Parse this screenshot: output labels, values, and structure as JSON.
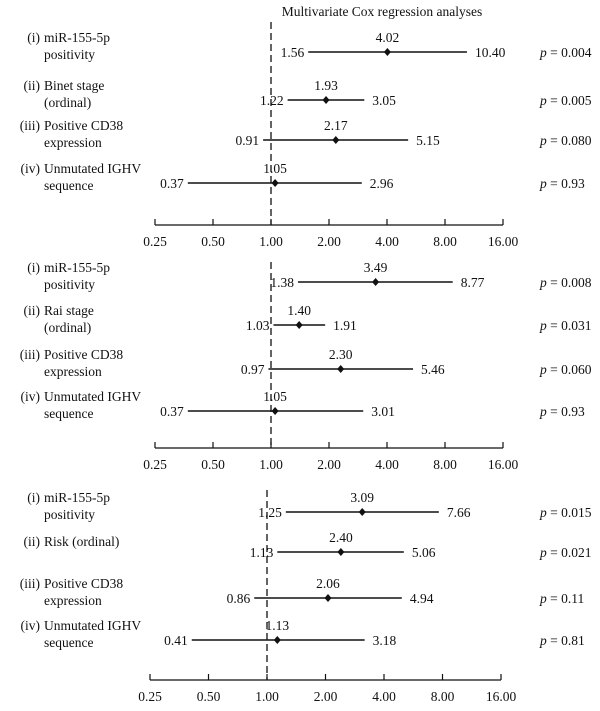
{
  "title": "Multivariate Cox regression analyses",
  "chart_data": [
    {
      "type": "forest",
      "scale": "log2",
      "reference_line": 1.0,
      "ticks": [
        "0.25",
        "0.50",
        "1.00",
        "2.00",
        "4.00",
        "8.00",
        "16.00"
      ],
      "tick_values": [
        0.25,
        0.5,
        1,
        2,
        4,
        8,
        16
      ],
      "rows": [
        {
          "num": "(i)",
          "label": [
            "miR-155-5p",
            "positivity"
          ],
          "hr": 4.02,
          "lo": 1.56,
          "hi": 10.4,
          "hr_label": "4.02",
          "lo_label": "1.56",
          "hi_label": "10.40",
          "p": "p = 0.004"
        },
        {
          "num": "(ii)",
          "label": [
            "Binet stage",
            "(ordinal)"
          ],
          "hr": 1.93,
          "lo": 1.22,
          "hi": 3.05,
          "hr_label": "1.93",
          "lo_label": "1.22",
          "hi_label": "3.05",
          "p": "p = 0.005"
        },
        {
          "num": "(iii)",
          "label": [
            "Positive CD38",
            "expression"
          ],
          "hr": 2.17,
          "lo": 0.91,
          "hi": 5.15,
          "hr_label": "2.17",
          "lo_label": "0.91",
          "hi_label": "5.15",
          "p": "p = 0.080"
        },
        {
          "num": "(iv)",
          "label": [
            "Unmutated IGHV",
            "sequence"
          ],
          "hr": 1.05,
          "lo": 0.37,
          "hi": 2.96,
          "hr_label": "1.05",
          "lo_label": "0.37",
          "hi_label": "2.96",
          "p": "p = 0.93"
        }
      ]
    },
    {
      "type": "forest",
      "scale": "log2",
      "reference_line": 1.0,
      "ticks": [
        "0.25",
        "0.50",
        "1.00",
        "2.00",
        "4.00",
        "8.00",
        "16.00"
      ],
      "tick_values": [
        0.25,
        0.5,
        1,
        2,
        4,
        8,
        16
      ],
      "rows": [
        {
          "num": "(i)",
          "label": [
            "miR-155-5p",
            "positivity"
          ],
          "hr": 3.49,
          "lo": 1.38,
          "hi": 8.77,
          "hr_label": "3.49",
          "lo_label": "1.38",
          "hi_label": "8.77",
          "p": "p = 0.008"
        },
        {
          "num": "(ii)",
          "label": [
            "Rai stage",
            "(ordinal)"
          ],
          "hr": 1.4,
          "lo": 1.03,
          "hi": 1.91,
          "hr_label": "1.40",
          "lo_label": "1.03",
          "hi_label": "1.91",
          "p": "p = 0.031"
        },
        {
          "num": "(iii)",
          "label": [
            "Positive CD38",
            "expression"
          ],
          "hr": 2.3,
          "lo": 0.97,
          "hi": 5.46,
          "hr_label": "2.30",
          "lo_label": "0.97",
          "hi_label": "5.46",
          "p": "p = 0.060"
        },
        {
          "num": "(iv)",
          "label": [
            "Unmutated IGHV",
            "sequence"
          ],
          "hr": 1.05,
          "lo": 0.37,
          "hi": 3.01,
          "hr_label": "1.05",
          "lo_label": "0.37",
          "hi_label": "3.01",
          "p": "p = 0.93"
        }
      ]
    },
    {
      "type": "forest",
      "scale": "log2",
      "reference_line": 1.0,
      "ticks": [
        "0.25",
        "0.50",
        "1.00",
        "2.00",
        "4.00",
        "8.00",
        "16.00"
      ],
      "tick_values": [
        0.25,
        0.5,
        1,
        2,
        4,
        8,
        16
      ],
      "rows": [
        {
          "num": "(i)",
          "label": [
            "miR-155-5p",
            "positivity"
          ],
          "hr": 3.09,
          "lo": 1.25,
          "hi": 7.66,
          "hr_label": "3.09",
          "lo_label": "1.25",
          "hi_label": "7.66",
          "p": "p = 0.015"
        },
        {
          "num": "(ii)",
          "label": [
            "Risk (ordinal)"
          ],
          "hr": 2.4,
          "lo": 1.13,
          "hi": 5.06,
          "hr_label": "2.40",
          "lo_label": "1.13",
          "hi_label": "5.06",
          "p": "p = 0.021"
        },
        {
          "num": "(iii)",
          "label": [
            "Positive CD38",
            "expression"
          ],
          "hr": 2.06,
          "lo": 0.86,
          "hi": 4.94,
          "hr_label": "2.06",
          "lo_label": "0.86",
          "hi_label": "4.94",
          "p": "p = 0.11"
        },
        {
          "num": "(iv)",
          "label": [
            "Unmutated IGHV",
            "sequence"
          ],
          "hr": 1.13,
          "lo": 0.41,
          "hi": 3.18,
          "hr_label": "1.13",
          "lo_label": "0.41",
          "hi_label": "3.18",
          "p": "p = 0.81"
        }
      ]
    }
  ]
}
